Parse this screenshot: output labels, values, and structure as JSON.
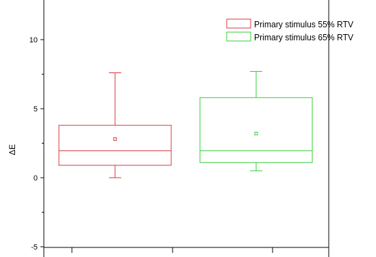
{
  "chart_data": {
    "type": "box",
    "ylabel": "ΔE",
    "ylim": [
      -5,
      12.5
    ],
    "yticks": [
      -5,
      0,
      5,
      10
    ],
    "grid": false,
    "legend_position": "top-right",
    "series": [
      {
        "name": "Primary stimulus 55% RTV",
        "color": "#d9363e",
        "min": 0.0,
        "q1": 0.9,
        "median": 1.95,
        "q3": 3.8,
        "max": 7.6,
        "mean": 2.8
      },
      {
        "name": "Primary stimulus 65% RTV",
        "color": "#33cc33",
        "min": 0.5,
        "q1": 1.1,
        "median": 1.95,
        "q3": 5.8,
        "max": 7.7,
        "mean": 3.2
      }
    ]
  }
}
